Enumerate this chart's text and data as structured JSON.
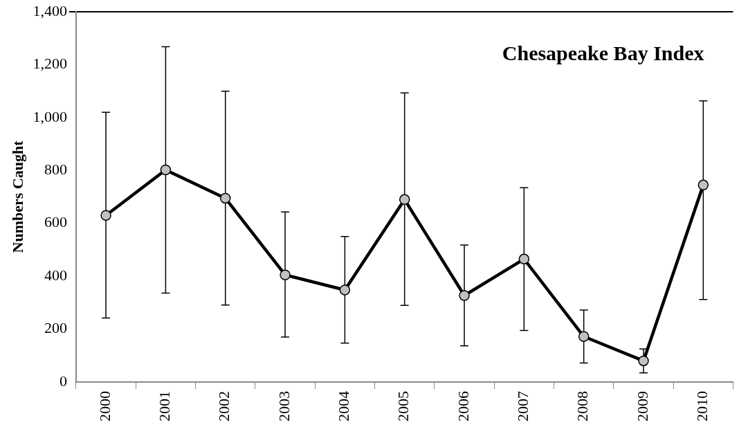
{
  "chart_data": {
    "type": "line",
    "title": "Chesapeake Bay Index",
    "ylabel": "Numbers Caught",
    "categories": [
      "2000",
      "2001",
      "2002",
      "2003",
      "2004",
      "2005",
      "2006",
      "2007",
      "2008",
      "2009",
      "2010"
    ],
    "values": [
      630,
      802,
      695,
      405,
      348,
      690,
      327,
      465,
      172,
      80,
      745
    ],
    "errors": [
      [
        242,
        1020
      ],
      [
        336,
        1268
      ],
      [
        291,
        1100
      ],
      [
        170,
        643
      ],
      [
        147,
        550
      ],
      [
        290,
        1093
      ],
      [
        137,
        518
      ],
      [
        195,
        735
      ],
      [
        72,
        272
      ],
      [
        35,
        125
      ],
      [
        312,
        1063
      ]
    ],
    "color": "#000000",
    "marker": "circle",
    "line_style": "solid",
    "ylim": [
      0,
      1400
    ],
    "yticks": [
      0,
      200,
      400,
      600,
      800,
      {
        "value": 1000,
        "label": "1,000"
      },
      {
        "value": 1200,
        "label": "1,200"
      },
      {
        "value": 1400,
        "label": "1,400"
      }
    ],
    "grid": false,
    "legend": false
  }
}
